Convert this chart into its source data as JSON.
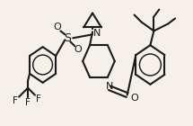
{
  "background_color": "#f5f0e8",
  "line_color": "#1a1a1a",
  "line_width": 1.5,
  "figsize": [
    2.15,
    1.4
  ],
  "dpi": 100,
  "xlim": [
    0,
    215
  ],
  "ylim": [
    0,
    140
  ]
}
